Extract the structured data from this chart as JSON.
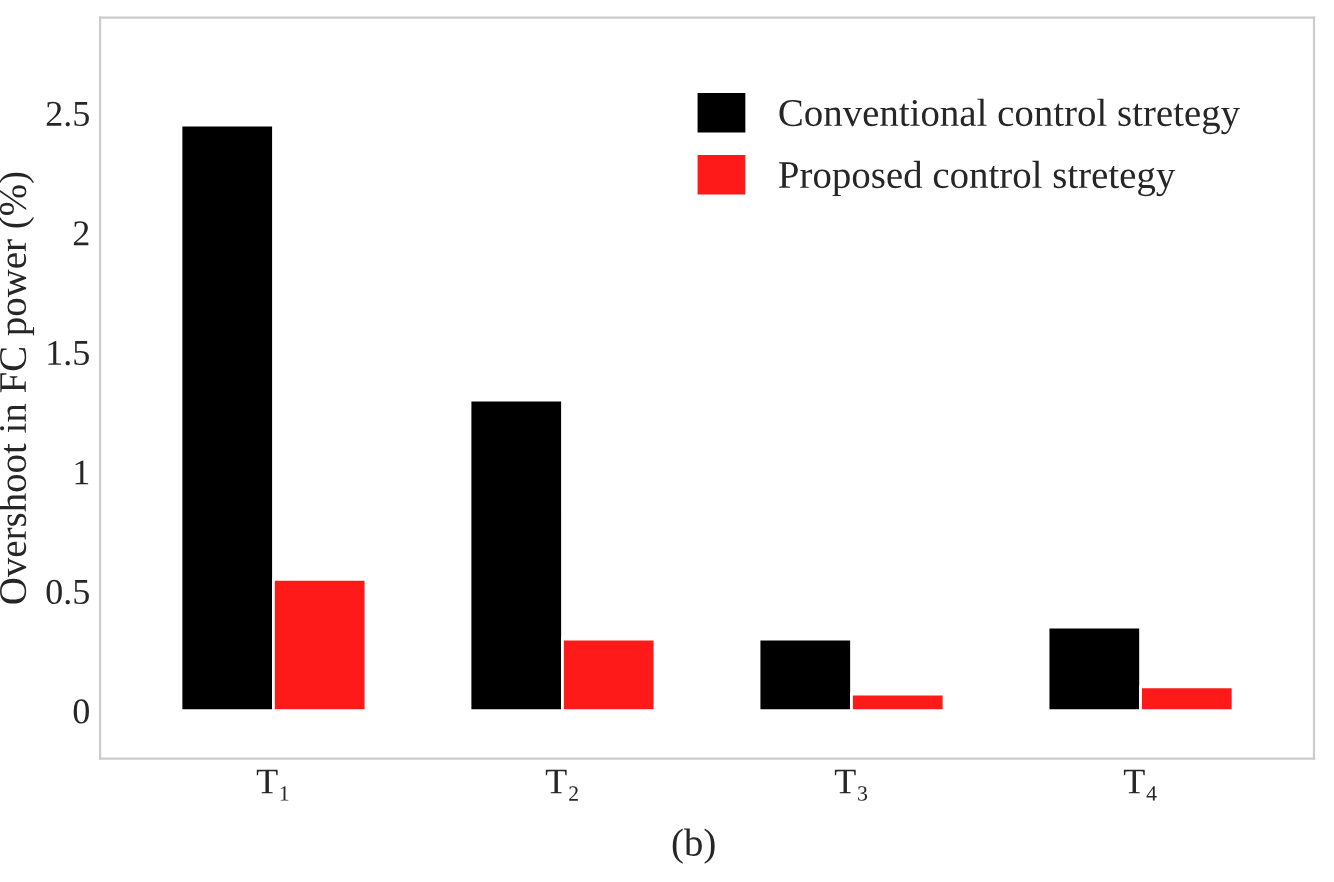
{
  "chart_data": {
    "type": "bar",
    "ylabel": "Overshoot in FC power (%)",
    "categories": [
      "T₁",
      "T₂",
      "T₃",
      "T₄"
    ],
    "series": [
      {
        "name": "Conventional control stretegy",
        "color": "#000000",
        "values": [
          2.45,
          1.3,
          0.3,
          0.35
        ]
      },
      {
        "name": "Proposed control stretegy",
        "color": "#ff1a1a",
        "values": [
          0.55,
          0.3,
          0.07,
          0.1
        ]
      }
    ],
    "ylim": [
      -0.2,
      2.9
    ],
    "yticks": [
      0,
      0.5,
      1,
      1.5,
      2,
      2.5
    ],
    "grid": false,
    "legend": "top right",
    "annotations": [
      "(b)"
    ]
  }
}
